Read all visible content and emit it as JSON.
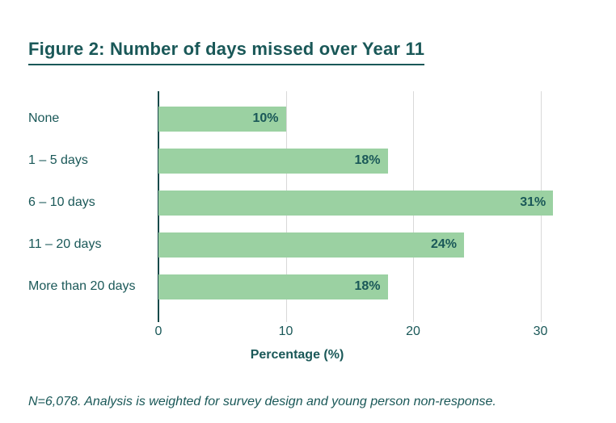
{
  "title": "Figure 2: Number of days missed over Year 11",
  "footnote": "N=6,078. Analysis is weighted for survey design and young person non-response.",
  "colors": {
    "text_teal": "#1a5858",
    "bar_green": "#9bd1a2",
    "gridline_gray": "#d9d9d9",
    "axis_line": "#174a4a",
    "background": "#ffffff"
  },
  "chart_data": {
    "type": "bar",
    "orientation": "horizontal",
    "title": "Figure 2: Number of days missed over Year 11",
    "categories": [
      "None",
      "1 – 5 days",
      "6 – 10 days",
      "11 – 20 days",
      "More than 20 days"
    ],
    "values": [
      10,
      18,
      31,
      24,
      18
    ],
    "value_labels": [
      "10%",
      "18%",
      "31%",
      "24%",
      "18%"
    ],
    "xlabel": "Percentage (%)",
    "ylabel": "",
    "xlim": [
      0,
      32
    ],
    "xticks": [
      0,
      10,
      20,
      30
    ],
    "xtick_labels": [
      "0",
      "10",
      "20",
      "30"
    ],
    "grid": "vertical",
    "legend": "none"
  }
}
